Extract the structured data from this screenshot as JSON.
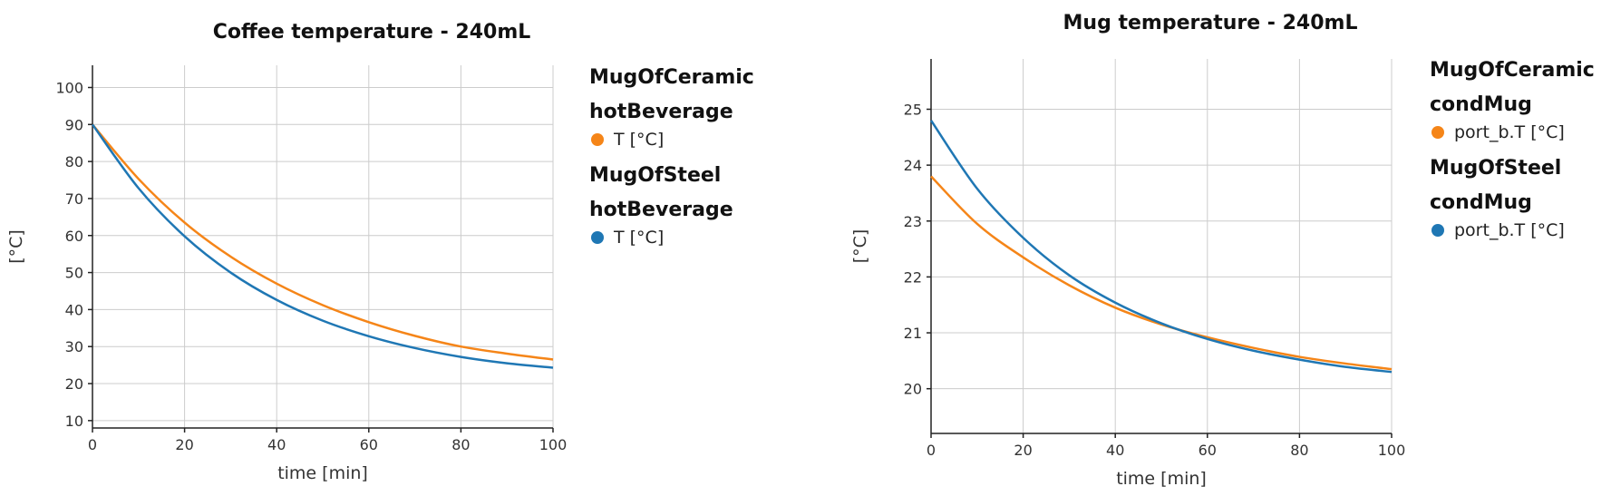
{
  "colors": {
    "ceramic": "#f58518",
    "steel": "#1f77b4"
  },
  "chart_data": [
    {
      "type": "line",
      "title": "Coffee temperature - 240mL",
      "xlabel": "time [min]",
      "ylabel": "[°C]",
      "xlim": [
        0,
        100
      ],
      "ylim": [
        8,
        106
      ],
      "xticks": [
        0,
        20,
        40,
        60,
        80,
        100
      ],
      "yticks": [
        10,
        20,
        30,
        40,
        50,
        60,
        70,
        80,
        90,
        100
      ],
      "grid": true,
      "legend_position": "right",
      "legend": [
        {
          "group": [
            "MugOfCeramic",
            "hotBeverage"
          ],
          "item": "T [°C]",
          "color_key": "ceramic"
        },
        {
          "group": [
            "MugOfSteel",
            "hotBeverage"
          ],
          "item": "T [°C]",
          "color_key": "steel"
        }
      ],
      "series": [
        {
          "color_key": "ceramic",
          "x": [
            0,
            10,
            20,
            30,
            40,
            50,
            60,
            70,
            80,
            90,
            100
          ],
          "y": [
            90,
            75.3,
            63.5,
            54.3,
            47,
            41.2,
            36.6,
            32.9,
            30,
            28.1,
            26.5
          ]
        },
        {
          "color_key": "steel",
          "x": [
            0,
            10,
            20,
            30,
            40,
            50,
            60,
            70,
            80,
            90,
            100
          ],
          "y": [
            90,
            72.8,
            59.8,
            50,
            42.6,
            37,
            32.8,
            29.6,
            27.2,
            25.5,
            24.3
          ]
        }
      ]
    },
    {
      "type": "line",
      "title": "Mug temperature - 240mL",
      "xlabel": "time [min]",
      "ylabel": "[°C]",
      "xlim": [
        0,
        100
      ],
      "ylim": [
        19.2,
        25.9
      ],
      "xticks": [
        0,
        20,
        40,
        60,
        80,
        100
      ],
      "yticks": [
        20,
        21,
        22,
        23,
        24,
        25
      ],
      "grid": true,
      "legend_position": "right",
      "legend": [
        {
          "group": [
            "MugOfCeramic",
            "condMug"
          ],
          "item": "port_b.T [°C]",
          "color_key": "ceramic"
        },
        {
          "group": [
            "MugOfSteel",
            "condMug"
          ],
          "item": "port_b.T [°C]",
          "color_key": "steel"
        }
      ],
      "series": [
        {
          "color_key": "ceramic",
          "x": [
            0,
            10,
            20,
            30,
            40,
            50,
            60,
            70,
            80,
            90,
            100
          ],
          "y": [
            23.8,
            22.95,
            22.35,
            21.85,
            21.45,
            21.15,
            20.92,
            20.73,
            20.57,
            20.45,
            20.35
          ]
        },
        {
          "color_key": "steel",
          "x": [
            0,
            10,
            20,
            30,
            40,
            50,
            60,
            70,
            80,
            90,
            100
          ],
          "y": [
            24.8,
            23.58,
            22.7,
            22.03,
            21.54,
            21.17,
            20.89,
            20.68,
            20.52,
            20.39,
            20.3
          ]
        }
      ]
    }
  ]
}
